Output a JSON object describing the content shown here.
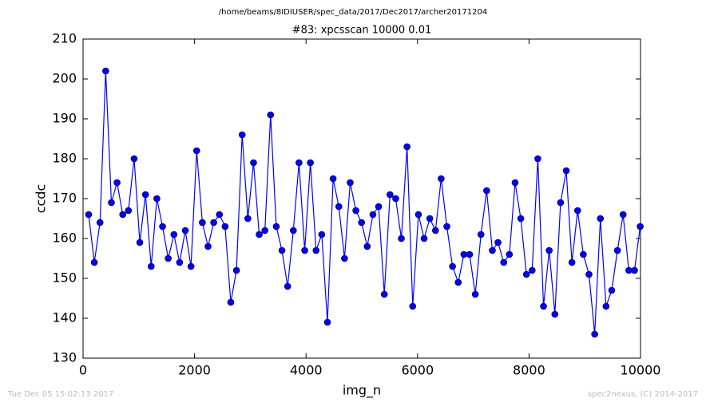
{
  "chart_data": {
    "type": "line",
    "suptitle": "/home/beams/8IDIUSER/spec_data/2017/Dec2017/archer20171204",
    "title": "#83: xpcsscan 10000 0.01",
    "xlabel": "img_n",
    "ylabel": "ccdc",
    "footer_left": "Tue Dec 05 15:02:13 2017",
    "footer_right": "spec2nexus, (C) 2014-2017",
    "x": [
      100,
      202,
      304,
      406,
      508,
      610,
      712,
      814,
      916,
      1018,
      1120,
      1222,
      1324,
      1426,
      1528,
      1630,
      1732,
      1834,
      1936,
      2038,
      2140,
      2242,
      2344,
      2446,
      2548,
      2650,
      2752,
      2854,
      2956,
      3058,
      3160,
      3262,
      3364,
      3466,
      3568,
      3670,
      3772,
      3874,
      3976,
      4078,
      4180,
      4282,
      4384,
      4486,
      4588,
      4690,
      4792,
      4894,
      4996,
      5098,
      5200,
      5302,
      5404,
      5506,
      5608,
      5710,
      5812,
      5914,
      6016,
      6118,
      6220,
      6322,
      6424,
      6526,
      6628,
      6730,
      6832,
      6934,
      7036,
      7138,
      7240,
      7342,
      7444,
      7546,
      7648,
      7750,
      7852,
      7954,
      8056,
      8158,
      8260,
      8362,
      8464,
      8566,
      8668,
      8770,
      8872,
      8974,
      9076,
      9178,
      9280,
      9382,
      9484,
      9586,
      9688,
      9790,
      9892,
      9994
    ],
    "series": [
      {
        "color": "#0000ff",
        "values": [
          166,
          154,
          164,
          202,
          169,
          174,
          166,
          167,
          180,
          159,
          171,
          153,
          170,
          163,
          155,
          161,
          154,
          162,
          153,
          182,
          164,
          158,
          164,
          166,
          163,
          144,
          152,
          186,
          165,
          179,
          161,
          162,
          191,
          163,
          157,
          148,
          162,
          179,
          157,
          179,
          157,
          161,
          139,
          175,
          168,
          155,
          174,
          167,
          164,
          158,
          166,
          168,
          146,
          171,
          170,
          160,
          183,
          143,
          166,
          160,
          165,
          162,
          175,
          163,
          153,
          149,
          156,
          156,
          146,
          161,
          172,
          157,
          159,
          154,
          156,
          174,
          165,
          151,
          152,
          180,
          143,
          157,
          141,
          169,
          177,
          154,
          167,
          156,
          151,
          136,
          165,
          143,
          147,
          157,
          166,
          152,
          152,
          163
        ]
      }
    ],
    "xlim": [
      0,
      10000
    ],
    "xticks": [
      0,
      2000,
      4000,
      6000,
      8000,
      10000
    ],
    "ylim": [
      130,
      210
    ],
    "yticks": [
      130,
      140,
      150,
      160,
      170,
      180,
      190,
      200,
      210
    ]
  }
}
